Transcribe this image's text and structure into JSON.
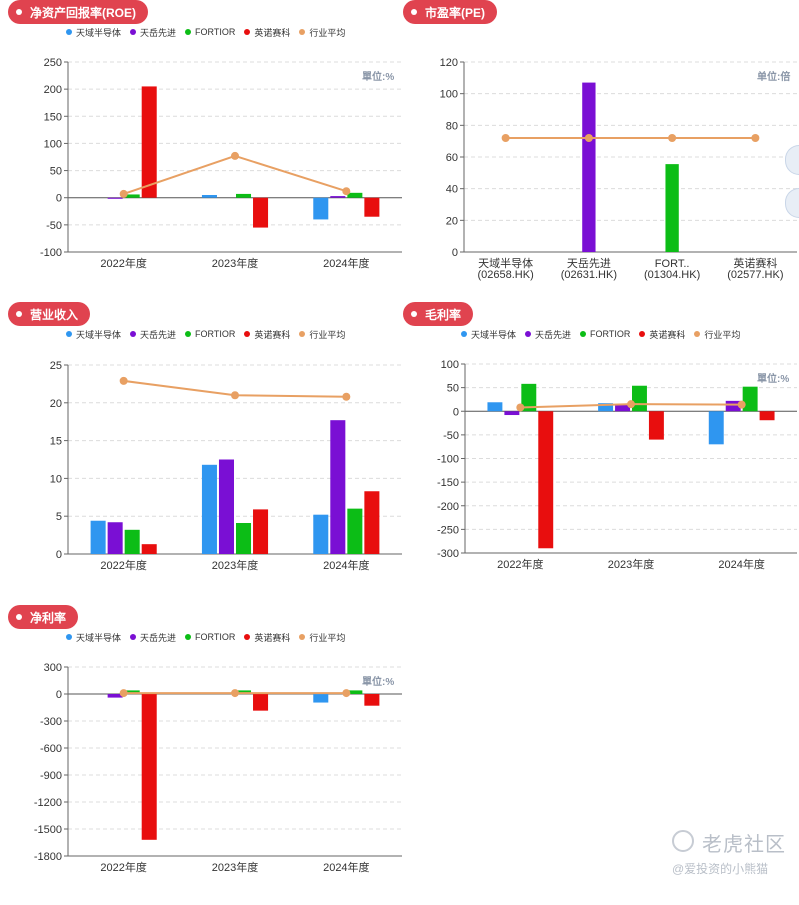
{
  "colors": {
    "series": [
      "#2f96f0",
      "#7a0fd4",
      "#0cbd16",
      "#e80e0e",
      "#e8a063"
    ],
    "title_pill": "#e0434f"
  },
  "legend": [
    "天域半导体",
    "天岳先进",
    "FORTIOR",
    "英诺赛科",
    "行业平均"
  ],
  "watermark": {
    "brand": "老虎社区",
    "handle": "@爱投资的小熊猫"
  },
  "chart_data": [
    {
      "id": "roe",
      "title": "净资产回报率(ROE)",
      "type": "bar",
      "unit": "單位:%",
      "categories": [
        "2022年度",
        "2023年度",
        "2024年度"
      ],
      "ylim": [
        -100,
        250
      ],
      "yticks": [
        -100,
        -50,
        0,
        50,
        100,
        150,
        200,
        250
      ],
      "series": [
        {
          "name": "天域半导体",
          "values": [
            0,
            5,
            -40
          ]
        },
        {
          "name": "天岳先进",
          "values": [
            -2,
            0,
            3
          ]
        },
        {
          "name": "FORTIOR",
          "values": [
            6,
            7,
            9
          ]
        },
        {
          "name": "英诺赛科",
          "values": [
            205,
            -55,
            -35
          ]
        },
        {
          "name": "行业平均",
          "kind": "line",
          "values": [
            7,
            77,
            12
          ]
        }
      ]
    },
    {
      "id": "pe",
      "title": "市盈率(PE)",
      "type": "bar",
      "unit": "单位:倍",
      "categories": [
        "天域半导体\n(02658.HK)",
        "天岳先进\n(02631.HK)",
        "FORT..\n(01304.HK)",
        "英诺赛科\n(02577.HK)"
      ],
      "ylim": [
        0,
        120
      ],
      "yticks": [
        0,
        20,
        40,
        60,
        80,
        100,
        120
      ],
      "values": [
        0,
        107,
        55.5,
        0
      ],
      "bar_colors": [
        "#2f96f0",
        "#7a0fd4",
        "#0cbd16",
        "#e80e0e"
      ],
      "line": {
        "name": "行业平均",
        "values": [
          72,
          72,
          72,
          72
        ]
      }
    },
    {
      "id": "revenue",
      "title": "营业收入",
      "type": "bar",
      "unit": "",
      "categories": [
        "2022年度",
        "2023年度",
        "2024年度"
      ],
      "ylim": [
        0,
        25
      ],
      "yticks": [
        0,
        5,
        10,
        15,
        20,
        25
      ],
      "series": [
        {
          "name": "天域半导体",
          "values": [
            4.4,
            11.8,
            5.2
          ]
        },
        {
          "name": "天岳先进",
          "values": [
            4.2,
            12.5,
            17.7
          ]
        },
        {
          "name": "FORTIOR",
          "values": [
            3.2,
            4.1,
            6.0
          ]
        },
        {
          "name": "英诺赛科",
          "values": [
            1.3,
            5.9,
            8.3
          ]
        },
        {
          "name": "行业平均",
          "kind": "line",
          "values": [
            22.9,
            21.0,
            20.8
          ]
        }
      ]
    },
    {
      "id": "gross",
      "title": "毛利率",
      "type": "bar",
      "unit": "單位:%",
      "categories": [
        "2022年度",
        "2023年度",
        "2024年度"
      ],
      "ylim": [
        -300,
        100
      ],
      "yticks": [
        -300,
        -250,
        -200,
        -150,
        -100,
        -50,
        0,
        50,
        100
      ],
      "series": [
        {
          "name": "天域半导体",
          "values": [
            19,
            17,
            -70
          ]
        },
        {
          "name": "天岳先进",
          "values": [
            -8,
            15,
            22
          ]
        },
        {
          "name": "FORTIOR",
          "values": [
            58,
            54,
            52
          ]
        },
        {
          "name": "英诺赛科",
          "values": [
            -290,
            -60,
            -19
          ]
        },
        {
          "name": "行业平均",
          "kind": "line",
          "values": [
            8,
            15,
            14
          ]
        }
      ]
    },
    {
      "id": "net",
      "title": "净利率",
      "type": "bar",
      "unit": "單位:%",
      "categories": [
        "2022年度",
        "2023年度",
        "2024年度"
      ],
      "ylim": [
        -1800,
        300
      ],
      "yticks": [
        -1800,
        -1500,
        -1200,
        -900,
        -600,
        -300,
        0,
        300
      ],
      "series": [
        {
          "name": "天域半导体",
          "values": [
            0,
            0,
            -95
          ]
        },
        {
          "name": "天岳先进",
          "values": [
            -40,
            0,
            0
          ]
        },
        {
          "name": "FORTIOR",
          "values": [
            40,
            40,
            40
          ]
        },
        {
          "name": "英诺赛科",
          "values": [
            -1620,
            -185,
            -130
          ]
        },
        {
          "name": "行业平均",
          "kind": "line",
          "values": [
            10,
            10,
            10
          ]
        }
      ]
    }
  ]
}
